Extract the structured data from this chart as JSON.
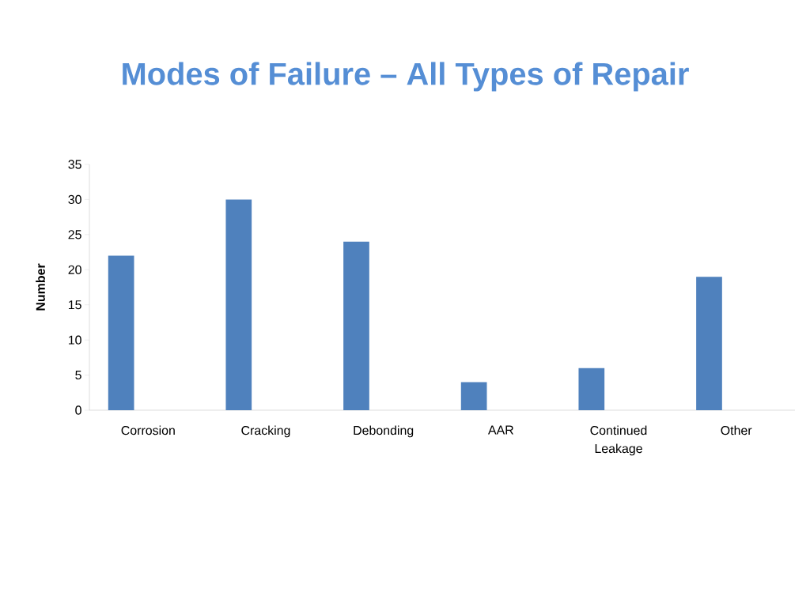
{
  "chart_data": {
    "type": "bar",
    "title": "Modes of Failure – All Types of Repair",
    "ylabel": "Number",
    "categories": [
      "Corrosion",
      "Cracking",
      "Debonding",
      "AAR",
      "Continued Leakage",
      "Other"
    ],
    "values": [
      22,
      30,
      24,
      4,
      6,
      19
    ],
    "color": "#4f81bd",
    "ylim": [
      0,
      35
    ],
    "yticks": [
      0,
      5,
      10,
      15,
      20,
      25,
      30,
      35
    ],
    "grid": false
  }
}
